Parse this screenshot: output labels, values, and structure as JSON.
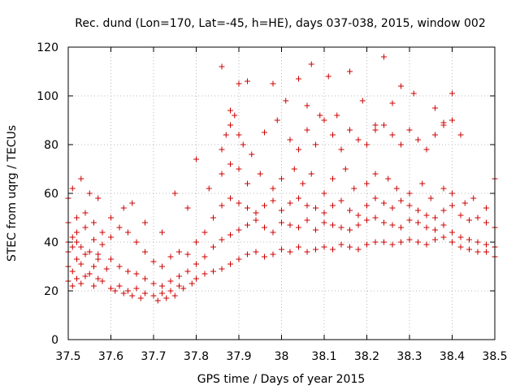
{
  "chart_data": {
    "type": "scatter",
    "title": "Rec. dund (Lon=170, Lat=-45, h=HE), days 037-038, 2015, window 002",
    "xlabel": "GPS time / Days of year 2015",
    "ylabel": "STEC from uqrg / TECUs",
    "xlim": [
      37.5,
      38.5
    ],
    "ylim": [
      0,
      120
    ],
    "xticks": [
      "37.5",
      "37.6",
      "37.7",
      "37.8",
      "37.9",
      "38",
      "38.1",
      "38.2",
      "38.3",
      "38.4",
      "38.5"
    ],
    "yticks": [
      "0",
      "20",
      "40",
      "60",
      "80",
      "100",
      "120"
    ],
    "grid": true,
    "legend": "none",
    "marker": "plus",
    "color": "#cc0000",
    "series": [
      {
        "x": [
          37.5,
          37.5,
          37.5,
          37.51,
          37.51,
          37.51,
          37.52,
          37.52,
          37.52,
          37.53,
          37.53,
          37.54,
          37.54,
          37.55,
          37.56,
          37.56,
          37.57,
          37.57,
          37.58,
          37.59,
          37.6,
          37.61,
          37.62,
          37.63,
          37.64,
          37.65,
          37.66,
          37.67,
          37.68,
          37.7,
          37.71,
          37.72,
          37.73,
          37.74,
          37.75,
          37.76,
          37.77,
          37.79,
          37.8,
          37.82,
          37.84,
          37.86,
          37.88,
          37.9,
          37.92,
          37.94,
          37.96,
          37.98,
          38.0,
          38.02,
          38.04,
          38.06,
          38.08,
          38.1,
          38.12,
          38.14,
          38.16,
          38.18,
          38.2,
          38.22,
          38.24,
          38.26,
          38.28,
          38.3,
          38.32,
          38.34,
          38.36,
          38.38,
          38.4,
          38.42,
          38.44,
          38.46,
          38.48,
          38.5
        ],
        "y": [
          24,
          30,
          36,
          22,
          28,
          38,
          25,
          33,
          40,
          23,
          31,
          26,
          35,
          27,
          22,
          30,
          25,
          33,
          24,
          29,
          21,
          20,
          22,
          19,
          20,
          18,
          21,
          17,
          19,
          18,
          16,
          19,
          17,
          20,
          18,
          22,
          21,
          23,
          25,
          27,
          28,
          29,
          31,
          33,
          35,
          36,
          34,
          35,
          37,
          36,
          38,
          36,
          37,
          38,
          37,
          39,
          38,
          37,
          39,
          40,
          40,
          39,
          40,
          41,
          40,
          39,
          41,
          42,
          40,
          38,
          37,
          36,
          36,
          34
        ]
      },
      {
        "x": [
          37.5,
          37.51,
          37.52,
          37.53,
          37.54,
          37.55,
          37.56,
          37.57,
          37.58,
          37.6,
          37.62,
          37.64,
          37.66,
          37.68,
          37.7,
          37.72,
          37.74,
          37.76,
          37.78,
          37.8,
          37.82,
          37.84,
          37.86,
          37.88,
          37.9,
          37.92,
          37.94,
          37.96,
          37.98,
          38.0,
          38.02,
          38.04,
          38.06,
          38.08,
          38.1,
          38.12,
          38.14,
          38.16,
          38.18,
          38.2,
          38.22,
          38.24,
          38.26,
          38.28,
          38.3,
          38.32,
          38.34,
          38.36,
          38.38,
          38.4,
          38.42,
          38.44,
          38.46,
          38.48,
          38.5
        ],
        "y": [
          40,
          42,
          44,
          38,
          46,
          36,
          41,
          35,
          39,
          33,
          30,
          28,
          27,
          25,
          23,
          22,
          24,
          26,
          28,
          31,
          34,
          38,
          41,
          43,
          45,
          47,
          49,
          46,
          44,
          48,
          47,
          46,
          49,
          45,
          48,
          47,
          46,
          45,
          47,
          49,
          50,
          48,
          47,
          46,
          49,
          48,
          46,
          45,
          47,
          44,
          42,
          41,
          40,
          39,
          38
        ]
      },
      {
        "x": [
          37.5,
          37.52,
          37.54,
          37.56,
          37.58,
          37.6,
          37.62,
          37.64,
          37.66,
          37.68,
          37.7,
          37.72,
          37.74,
          37.76,
          37.78,
          37.8,
          37.82,
          37.84,
          37.86,
          37.88,
          37.9,
          37.92,
          37.94,
          37.96,
          37.98,
          38.0,
          38.02,
          38.04,
          38.06,
          38.08,
          38.1,
          38.12,
          38.14,
          38.16,
          38.18,
          38.2,
          38.22,
          38.24,
          38.26,
          38.28,
          38.3,
          38.32,
          38.34,
          38.36,
          38.38,
          38.4,
          38.42,
          38.44,
          38.46,
          38.48,
          38.5
        ],
        "y": [
          48,
          50,
          52,
          48,
          44,
          42,
          46,
          44,
          40,
          36,
          32,
          30,
          34,
          36,
          35,
          40,
          44,
          50,
          55,
          58,
          56,
          54,
          52,
          55,
          57,
          53,
          56,
          58,
          55,
          54,
          52,
          55,
          57,
          53,
          51,
          55,
          58,
          56,
          54,
          57,
          55,
          53,
          51,
          50,
          53,
          55,
          51,
          49,
          50,
          48,
          46
        ]
      },
      {
        "x": [
          37.5,
          37.51,
          37.53,
          37.55,
          37.57,
          37.6,
          37.63,
          37.65,
          37.68,
          37.72,
          37.75,
          37.78,
          37.8,
          37.83,
          37.86,
          37.88,
          37.9,
          37.92,
          37.95,
          37.98,
          38.0,
          38.03,
          38.05,
          38.07,
          38.1,
          38.12,
          38.15,
          38.17,
          38.2,
          38.22,
          38.25,
          38.27,
          38.3,
          38.33,
          38.35,
          38.38,
          38.4,
          38.43,
          38.45,
          38.48,
          38.5
        ],
        "y": [
          58,
          62,
          66,
          60,
          58,
          50,
          54,
          56,
          48,
          44,
          60,
          54,
          74,
          62,
          68,
          72,
          70,
          64,
          68,
          62,
          66,
          70,
          64,
          68,
          60,
          66,
          70,
          62,
          64,
          68,
          66,
          62,
          60,
          64,
          58,
          62,
          60,
          56,
          58,
          54,
          66
        ]
      },
      {
        "x": [
          37.86,
          37.87,
          37.88,
          37.89,
          37.9,
          37.91,
          37.93,
          37.96,
          37.99,
          38.02,
          38.04,
          38.06,
          38.08,
          38.1,
          38.12,
          38.14,
          38.16,
          38.18,
          38.2,
          38.22,
          38.24,
          38.26,
          38.28,
          38.3,
          38.32,
          38.34,
          38.36,
          38.38,
          38.4,
          38.42
        ],
        "y": [
          78,
          84,
          88,
          92,
          84,
          80,
          76,
          85,
          90,
          82,
          78,
          86,
          80,
          90,
          84,
          78,
          86,
          82,
          80,
          86,
          88,
          84,
          80,
          86,
          82,
          78,
          84,
          88,
          90,
          84
        ]
      },
      {
        "x": [
          37.86,
          37.88,
          37.9,
          37.92,
          37.98,
          38.01,
          38.04,
          38.06,
          38.07,
          38.09,
          38.11,
          38.13,
          38.16,
          38.19,
          38.22,
          38.24,
          38.26,
          38.28,
          38.3,
          38.31,
          38.36,
          38.38,
          38.4
        ],
        "y": [
          112,
          94,
          105,
          106,
          105,
          98,
          107,
          96,
          113,
          92,
          108,
          92,
          110,
          98,
          88,
          116,
          97,
          104,
          86,
          101,
          95,
          89,
          101
        ]
      }
    ]
  }
}
